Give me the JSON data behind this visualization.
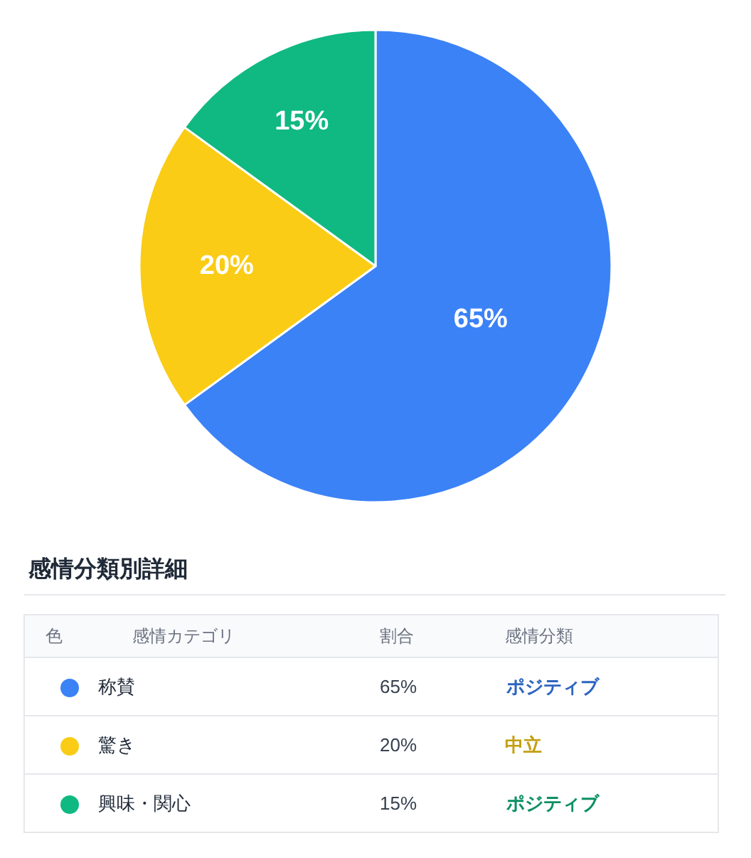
{
  "chart_data": {
    "type": "pie",
    "categories": [
      "称賛",
      "驚き",
      "興味・関心"
    ],
    "values": [
      65,
      20,
      15
    ],
    "colors": [
      "#3b82f6",
      "#facc15",
      "#10b981"
    ],
    "value_labels": [
      "65%",
      "20%",
      "15%"
    ],
    "legend": "bottom",
    "annotations": [
      "感情分類別詳細",
      "色",
      "感情カテゴリ",
      "割合",
      "感情分類",
      "ポジティブ",
      "中立",
      "ポジティブ"
    ]
  }
}
